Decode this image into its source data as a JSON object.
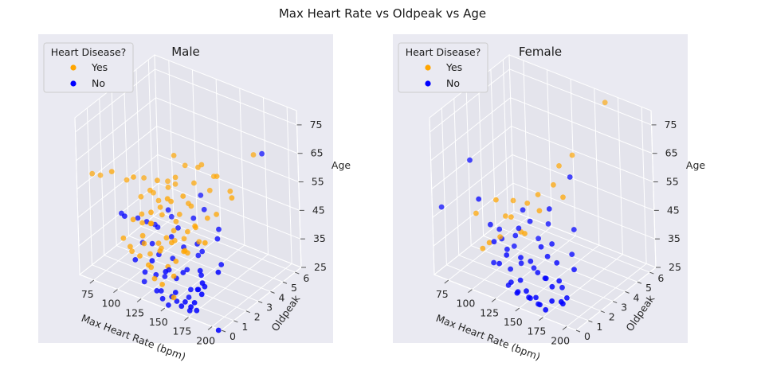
{
  "suptitle": "Max Heart Rate vs Oldpeak vs Age",
  "legend": {
    "title": "Heart Disease?",
    "yes_label": "Yes",
    "no_label": "No",
    "yes_color": "#FFA500",
    "no_color": "#0000FF"
  },
  "chart_data": [
    {
      "type": "scatter",
      "projection": "3d",
      "title": "Male",
      "xlabel": "Max Heart Rate (bpm)",
      "ylabel": "Oldpeak",
      "zlabel": "Age",
      "xlim": [
        60,
        210
      ],
      "ylim": [
        0,
        6.5
      ],
      "zlim": [
        25,
        80
      ],
      "xticks": [
        75,
        100,
        125,
        150,
        175,
        200
      ],
      "yticks": [
        0,
        1,
        2,
        3,
        4,
        5,
        6
      ],
      "zticks": [
        25,
        35,
        45,
        55,
        65,
        75
      ],
      "legend_position": "upper-left",
      "grid": true,
      "series": [
        {
          "name": "Yes",
          "color": "#FFA500",
          "points": [
            [
              70,
              0.5,
              60
            ],
            [
              72,
              1.0,
              58
            ],
            [
              95,
              0.2,
              65
            ],
            [
              100,
              1.0,
              60
            ],
            [
              105,
              2.0,
              58
            ],
            [
              110,
              0.8,
              63
            ],
            [
              112,
              1.2,
              55
            ],
            [
              115,
              1.0,
              50
            ],
            [
              118,
              1.5,
              57
            ],
            [
              120,
              2.0,
              52
            ],
            [
              122,
              1.8,
              60
            ],
            [
              125,
              1.0,
              48
            ],
            [
              125,
              3.0,
              55
            ],
            [
              128,
              2.2,
              57
            ],
            [
              130,
              0.0,
              45
            ],
            [
              130,
              1.5,
              50
            ],
            [
              132,
              2.5,
              60
            ],
            [
              135,
              1.0,
              55
            ],
            [
              136,
              3.0,
              63
            ],
            [
              138,
              2.0,
              47
            ],
            [
              140,
              0.5,
              42
            ],
            [
              140,
              1.5,
              56
            ],
            [
              142,
              2.0,
              50
            ],
            [
              145,
              3.0,
              58
            ],
            [
              146,
              1.0,
              44
            ],
            [
              148,
              2.5,
              52
            ],
            [
              150,
              2.0,
              45
            ],
            [
              152,
              1.5,
              40
            ],
            [
              155,
              3.5,
              55
            ],
            [
              158,
              2.0,
              48
            ],
            [
              160,
              1.0,
              43
            ],
            [
              165,
              2.5,
              50
            ],
            [
              170,
              4.0,
              55
            ],
            [
              175,
              1.5,
              46
            ],
            [
              185,
              3.0,
              58
            ],
            [
              110,
              0.5,
              38
            ],
            [
              115,
              0.0,
              42
            ],
            [
              118,
              0.8,
              48
            ],
            [
              120,
              1.2,
              36
            ],
            [
              122,
              0.5,
              45
            ],
            [
              125,
              0.0,
              40
            ],
            [
              128,
              1.5,
              38
            ],
            [
              130,
              0.5,
              35
            ],
            [
              132,
              1.0,
              42
            ],
            [
              134,
              0.0,
              38
            ],
            [
              136,
              2.0,
              40
            ],
            [
              138,
              1.2,
              44
            ],
            [
              140,
              0.0,
              34
            ],
            [
              142,
              1.5,
              46
            ],
            [
              144,
              0.8,
              36
            ],
            [
              146,
              2.0,
              42
            ],
            [
              148,
              0.0,
              33
            ],
            [
              150,
              1.0,
              38
            ],
            [
              152,
              2.5,
              45
            ],
            [
              154,
              0.5,
              35
            ],
            [
              156,
              1.5,
              40
            ],
            [
              160,
              0.0,
              30
            ],
            [
              162,
              2.0,
              43
            ],
            [
              168,
              3.0,
              50
            ],
            [
              180,
              5.2,
              65
            ],
            [
              135,
              0.2,
              52
            ],
            [
              112,
              2.2,
              53
            ],
            [
              117,
              3.0,
              55
            ],
            [
              119,
              0.0,
              52
            ],
            [
              127,
              2.8,
              66
            ],
            [
              139,
              3.8,
              60
            ],
            [
              143,
              1.0,
              59
            ],
            [
              147,
              3.5,
              63
            ],
            [
              153,
              4.0,
              58
            ],
            [
              163,
              3.5,
              61
            ],
            [
              108,
              0.0,
              44
            ],
            [
              133,
              0.4,
              55
            ],
            [
              141,
              2.8,
              51
            ],
            [
              149,
              1.8,
              58
            ]
          ]
        },
        {
          "name": "No",
          "color": "#0000FF",
          "points": [
            [
              100,
              0.5,
              50
            ],
            [
              110,
              0.0,
              52
            ],
            [
              115,
              1.0,
              40
            ],
            [
              120,
              0.0,
              38
            ],
            [
              125,
              1.5,
              45
            ],
            [
              128,
              0.8,
              42
            ],
            [
              130,
              0.0,
              35
            ],
            [
              132,
              1.0,
              38
            ],
            [
              135,
              0.5,
              33
            ],
            [
              138,
              0.0,
              40
            ],
            [
              140,
              1.5,
              36
            ],
            [
              142,
              0.0,
              30
            ],
            [
              145,
              0.8,
              35
            ],
            [
              148,
              0.0,
              28
            ],
            [
              150,
              1.0,
              32
            ],
            [
              152,
              0.0,
              38
            ],
            [
              155,
              1.5,
              34
            ],
            [
              158,
              0.0,
              30
            ],
            [
              160,
              0.8,
              36
            ],
            [
              162,
              0.0,
              32
            ],
            [
              165,
              1.0,
              30
            ],
            [
              168,
              0.0,
              28
            ],
            [
              170,
              1.5,
              34
            ],
            [
              172,
              0.0,
              30
            ],
            [
              175,
              0.8,
              32
            ],
            [
              178,
              0.0,
              29
            ],
            [
              180,
              1.0,
              33
            ],
            [
              182,
              0.0,
              31
            ],
            [
              185,
              2.0,
              38
            ],
            [
              190,
              0.0,
              35
            ],
            [
              195,
              1.0,
              40
            ],
            [
              200,
              0.5,
              22
            ],
            [
              140,
              2.0,
              45
            ],
            [
              150,
              2.5,
              48
            ],
            [
              160,
              2.0,
              42
            ],
            [
              170,
              3.0,
              45
            ],
            [
              130,
              2.0,
              50
            ],
            [
              120,
              1.0,
              48
            ],
            [
              155,
              3.0,
              50
            ],
            [
              165,
              2.0,
              40
            ],
            [
              175,
              2.5,
              44
            ],
            [
              145,
              3.5,
              52
            ],
            [
              185,
              5.5,
              65
            ],
            [
              160,
              1.2,
              26
            ],
            [
              150,
              0.3,
              25
            ],
            [
              140,
              0.5,
              28
            ],
            [
              170,
              0.5,
              25
            ],
            [
              180,
              0.3,
              27
            ],
            [
              125,
              0.3,
              30
            ],
            [
              135,
              1.2,
              30
            ],
            [
              155,
              0.6,
              26
            ],
            [
              165,
              1.6,
              28
            ],
            [
              148,
              1.8,
              40
            ],
            [
              158,
              2.2,
              37
            ],
            [
              138,
              1.6,
              43
            ],
            [
              128,
              2.4,
              46
            ],
            [
              118,
              1.8,
              44
            ],
            [
              108,
              1.2,
              47
            ],
            [
              173,
              1.2,
              37
            ],
            [
              183,
              0.6,
              36
            ]
          ]
        }
      ]
    },
    {
      "type": "scatter",
      "projection": "3d",
      "title": "Female",
      "xlabel": "Max Heart Rate (bpm)",
      "ylabel": "Oldpeak",
      "zlabel": "Age",
      "xlim": [
        60,
        210
      ],
      "ylim": [
        0,
        6.5
      ],
      "zlim": [
        25,
        80
      ],
      "xticks": [
        75,
        100,
        125,
        150,
        175,
        200
      ],
      "yticks": [
        0,
        1,
        2,
        3,
        4,
        5,
        6
      ],
      "zticks": [
        25,
        35,
        45,
        55,
        65,
        75
      ],
      "legend_position": "upper-left",
      "grid": true,
      "series": [
        {
          "name": "Yes",
          "color": "#FFA500",
          "points": [
            [
              100,
              0.5,
              50
            ],
            [
              115,
              1.0,
              55
            ],
            [
              118,
              1.5,
              48
            ],
            [
              120,
              2.0,
              52
            ],
            [
              125,
              0.5,
              45
            ],
            [
              128,
              1.2,
              50
            ],
            [
              130,
              1.8,
              43
            ],
            [
              135,
              2.0,
              53
            ],
            [
              140,
              2.5,
              55
            ],
            [
              142,
              1.2,
              46
            ],
            [
              145,
              2.2,
              51
            ],
            [
              150,
              3.0,
              58
            ],
            [
              160,
              3.0,
              55
            ],
            [
              120,
              0.0,
              44
            ],
            [
              110,
              0.2,
              40
            ],
            [
              150,
              3.5,
              63
            ],
            [
              155,
              4.2,
              65
            ],
            [
              165,
              6.2,
              78
            ]
          ]
        },
        {
          "name": "No",
          "color": "#0000FF",
          "points": [
            [
              70,
              0.0,
              50
            ],
            [
              95,
              0.5,
              68
            ],
            [
              110,
              0.0,
              58
            ],
            [
              115,
              0.5,
              48
            ],
            [
              120,
              1.0,
              42
            ],
            [
              125,
              0.0,
              45
            ],
            [
              128,
              0.8,
              40
            ],
            [
              130,
              0.0,
              38
            ],
            [
              132,
              1.2,
              44
            ],
            [
              135,
              0.5,
              35
            ],
            [
              138,
              0.0,
              42
            ],
            [
              140,
              1.0,
              36
            ],
            [
              142,
              0.0,
              33
            ],
            [
              145,
              0.6,
              40
            ],
            [
              148,
              0.0,
              30
            ],
            [
              150,
              1.0,
              38
            ],
            [
              152,
              0.0,
              35
            ],
            [
              155,
              1.5,
              42
            ],
            [
              158,
              0.0,
              32
            ],
            [
              160,
              0.8,
              36
            ],
            [
              162,
              0.0,
              30
            ],
            [
              165,
              1.0,
              34
            ],
            [
              168,
              0.0,
              31
            ],
            [
              170,
              1.6,
              38
            ],
            [
              172,
              0.0,
              29
            ],
            [
              175,
              0.8,
              33
            ],
            [
              178,
              0.0,
              28
            ],
            [
              180,
              1.0,
              35
            ],
            [
              185,
              0.0,
              32
            ],
            [
              190,
              0.5,
              30
            ],
            [
              195,
              0.0,
              33
            ],
            [
              160,
              2.0,
              42
            ],
            [
              150,
              2.5,
              46
            ],
            [
              140,
              1.8,
              48
            ],
            [
              130,
              2.0,
              50
            ],
            [
              155,
              0.4,
              28
            ],
            [
              165,
              0.4,
              27
            ],
            [
              145,
              0.3,
              29
            ],
            [
              175,
              1.6,
              30
            ],
            [
              185,
              1.2,
              29
            ],
            [
              120,
              0.3,
              36
            ],
            [
              135,
              0.3,
              30
            ],
            [
              148,
              1.4,
              34
            ],
            [
              158,
              1.6,
              31
            ],
            [
              143,
              2.2,
              41
            ],
            [
              133,
              1.4,
              46
            ],
            [
              153,
              2.4,
              52
            ],
            [
              163,
              1.4,
              40
            ],
            [
              173,
              2.6,
              38
            ],
            [
              183,
              2.0,
              36
            ],
            [
              125,
              1.6,
              38
            ],
            [
              115,
              1.2,
              44
            ],
            [
              168,
              3.2,
              44
            ],
            [
              160,
              3.6,
              60
            ]
          ]
        }
      ]
    }
  ]
}
